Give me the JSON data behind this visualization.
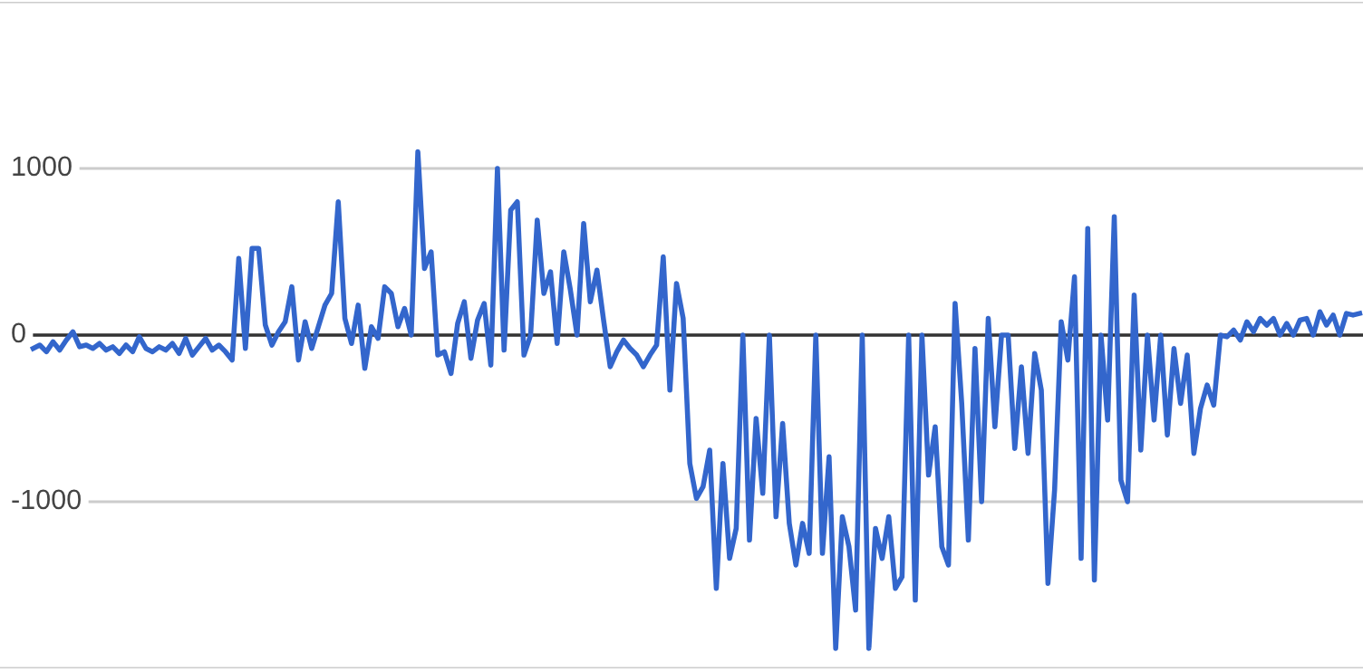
{
  "chart_data": {
    "type": "line",
    "series": [
      {
        "color": "#3366cc",
        "values": [
          -80,
          -60,
          -100,
          -40,
          -90,
          -30,
          20,
          -70,
          -60,
          -80,
          -50,
          -90,
          -70,
          -110,
          -60,
          -100,
          -10,
          -80,
          -100,
          -70,
          -90,
          -50,
          -110,
          -20,
          -120,
          -70,
          -20,
          -90,
          -60,
          -100,
          -150,
          460,
          -80,
          520,
          520,
          60,
          -60,
          20,
          80,
          290,
          -150,
          80,
          -80,
          50,
          180,
          250,
          800,
          100,
          -50,
          180,
          -200,
          50,
          -20,
          290,
          250,
          50,
          160,
          0,
          1100,
          400,
          500,
          -120,
          -100,
          -230,
          70,
          200,
          -140,
          90,
          190,
          -180,
          1000,
          -90,
          750,
          800,
          -120,
          0,
          690,
          250,
          380,
          -50,
          500,
          270,
          0,
          670,
          200,
          390,
          90,
          -190,
          -100,
          -30,
          -80,
          -120,
          -190,
          -120,
          -60,
          470,
          -330,
          310,
          100,
          -770,
          -980,
          -910,
          -690,
          -1520,
          -770,
          -1340,
          -1160,
          0,
          -1230,
          -500,
          -950,
          0,
          -1090,
          -530,
          -1130,
          -1380,
          -1130,
          -1310,
          0,
          -1310,
          -730,
          -1880,
          -1090,
          -1270,
          -1650,
          0,
          -1880,
          -1160,
          -1340,
          -1090,
          -1520,
          -1450,
          0,
          -1590,
          0,
          -840,
          -550,
          -1270,
          -1380,
          190,
          -410,
          -1230,
          -80,
          -1000,
          100,
          -550,
          0,
          0,
          -680,
          -190,
          -710,
          -110,
          -330,
          -1490,
          -930,
          80,
          -150,
          350,
          -1340,
          640,
          -1470,
          0,
          -510,
          710,
          -870,
          -1000,
          240,
          -690,
          0,
          -510,
          0,
          -600,
          -80,
          -410,
          -120,
          -710,
          -440,
          -300,
          -420,
          0,
          -10,
          30,
          -30,
          80,
          20,
          100,
          60,
          100,
          0,
          70,
          0,
          90,
          100,
          0,
          140,
          60,
          120,
          0,
          130,
          120,
          130
        ]
      }
    ],
    "categories": [
      null,
      null,
      null,
      null,
      null,
      null,
      null,
      null,
      null,
      null,
      null,
      null,
      null,
      null,
      null,
      null,
      null,
      null,
      null,
      null,
      null,
      null,
      null,
      null,
      null,
      null,
      null,
      null,
      null,
      null,
      null,
      null,
      null,
      null,
      null,
      null,
      null,
      null,
      null,
      null,
      null,
      null,
      null,
      null,
      null,
      null,
      null,
      null,
      null,
      null,
      null,
      null,
      null,
      null,
      null,
      null,
      null,
      null,
      null,
      null,
      null,
      null,
      null,
      null,
      null,
      null,
      null,
      null,
      null,
      null,
      null,
      null,
      null,
      null,
      null,
      null,
      null,
      null,
      null,
      null,
      null,
      null,
      null,
      null,
      null,
      null,
      null,
      null,
      null,
      null,
      null,
      null,
      null,
      null,
      null,
      null,
      null,
      null,
      null,
      null,
      null,
      null,
      null,
      null,
      null,
      null,
      null,
      null,
      null,
      null,
      null,
      null,
      null,
      null,
      null,
      null,
      null,
      null,
      null,
      null,
      null,
      null,
      null,
      null,
      null,
      null,
      null,
      null,
      null,
      null,
      null,
      null,
      null,
      null,
      null,
      null,
      null,
      null,
      null,
      null,
      null,
      null,
      null,
      null,
      null,
      null,
      null,
      null,
      null,
      null,
      null,
      null,
      null,
      null,
      null,
      null,
      null,
      null,
      null,
      null,
      null,
      null,
      null,
      null,
      null,
      null,
      null,
      null,
      null,
      null,
      null,
      null,
      null,
      null,
      null,
      null,
      null,
      null,
      null,
      null,
      null,
      null,
      null,
      null,
      null,
      null,
      null,
      null,
      null,
      null,
      null,
      null,
      null,
      null,
      null,
      null,
      null,
      null,
      null,
      null,
      null
    ],
    "ylim": [
      -2000,
      2000
    ],
    "yticks": [
      {
        "value": -2000,
        "label": null
      },
      -1000,
      0,
      1000,
      {
        "value": 2000,
        "label": null
      }
    ],
    "grid": "y",
    "tick_labels": "y",
    "ref_lines": [
      {
        "axis": "y",
        "value": 0,
        "label": null,
        "color": "#333333"
      }
    ]
  }
}
